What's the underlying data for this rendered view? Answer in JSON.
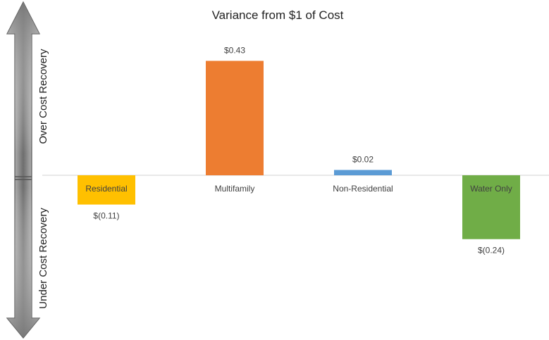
{
  "chart_data": {
    "type": "bar",
    "title": "Variance from $1 of Cost",
    "categories": [
      "Residential",
      "Multifamily",
      "Non-Residential",
      "Water Only"
    ],
    "values": [
      -0.11,
      0.43,
      0.02,
      -0.24
    ],
    "data_labels": [
      "$(0.11)",
      "$0.43",
      "$0.02",
      "$(0.24)"
    ],
    "colors": [
      "#FFC000",
      "#ED7D31",
      "#5B9BD5",
      "#70AD47"
    ],
    "ylim": [
      -0.55,
      0.64
    ],
    "grid": false,
    "legend": "none",
    "side_labels": {
      "over": "Over Cost Recovery",
      "under": "Under Cost Recovery"
    }
  }
}
